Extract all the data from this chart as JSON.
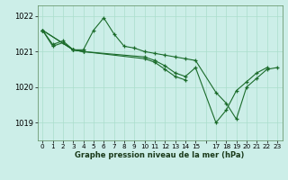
{
  "title": "Graphe pression niveau de la mer (hPa)",
  "bg_color": "#cceee8",
  "grid_color": "#aaddcc",
  "line_color": "#1a6b2a",
  "marker_color": "#1a6b2a",
  "xlim": [
    -0.5,
    23.5
  ],
  "ylim": [
    1018.5,
    1022.3
  ],
  "yticks": [
    1019,
    1020,
    1021,
    1022
  ],
  "ytick_labels": [
    "1019",
    "1020",
    "1021",
    "1022"
  ],
  "xtick_labels": [
    "0",
    "1",
    "2",
    "3",
    "4",
    "5",
    "6",
    "7",
    "8",
    "9",
    "10",
    "11",
    "12",
    "13",
    "14",
    "15",
    "",
    "17",
    "18",
    "19",
    "20",
    "21",
    "22",
    "23"
  ],
  "series": [
    [
      0,
      1021.6
    ],
    [
      0,
      1021.6,
      1,
      1021.2,
      2,
      1021.3,
      3,
      1021.05,
      4,
      1021.05,
      5,
      1021.6,
      6,
      1021.95,
      7,
      1021.5,
      8,
      1021.15,
      9,
      1021.1,
      10,
      1021.0,
      11,
      1020.95,
      12,
      1020.9,
      13,
      1020.85,
      14,
      1020.8,
      15,
      1020.75,
      17,
      1019.85,
      18,
      1019.55,
      19,
      1019.1,
      20,
      1020.0,
      21,
      1020.25,
      22,
      1020.5,
      23,
      1020.55
    ],
    [
      0,
      1021.6,
      1,
      1021.15,
      2,
      1021.25,
      3,
      1021.05,
      4,
      1021.0
    ],
    [
      0,
      1021.6,
      3,
      1021.05,
      4,
      1021.0,
      10,
      1020.85,
      11,
      1020.75,
      12,
      1020.6,
      13,
      1020.4,
      14,
      1020.3,
      15,
      1020.55,
      17,
      1019.0,
      18,
      1019.35,
      19,
      1019.9,
      20,
      1020.15,
      21,
      1020.4,
      22,
      1020.55
    ],
    [
      0,
      1021.6,
      3,
      1021.05,
      4,
      1021.0,
      10,
      1020.8,
      11,
      1020.7,
      12,
      1020.5,
      13,
      1020.3,
      14,
      1020.2
    ]
  ]
}
